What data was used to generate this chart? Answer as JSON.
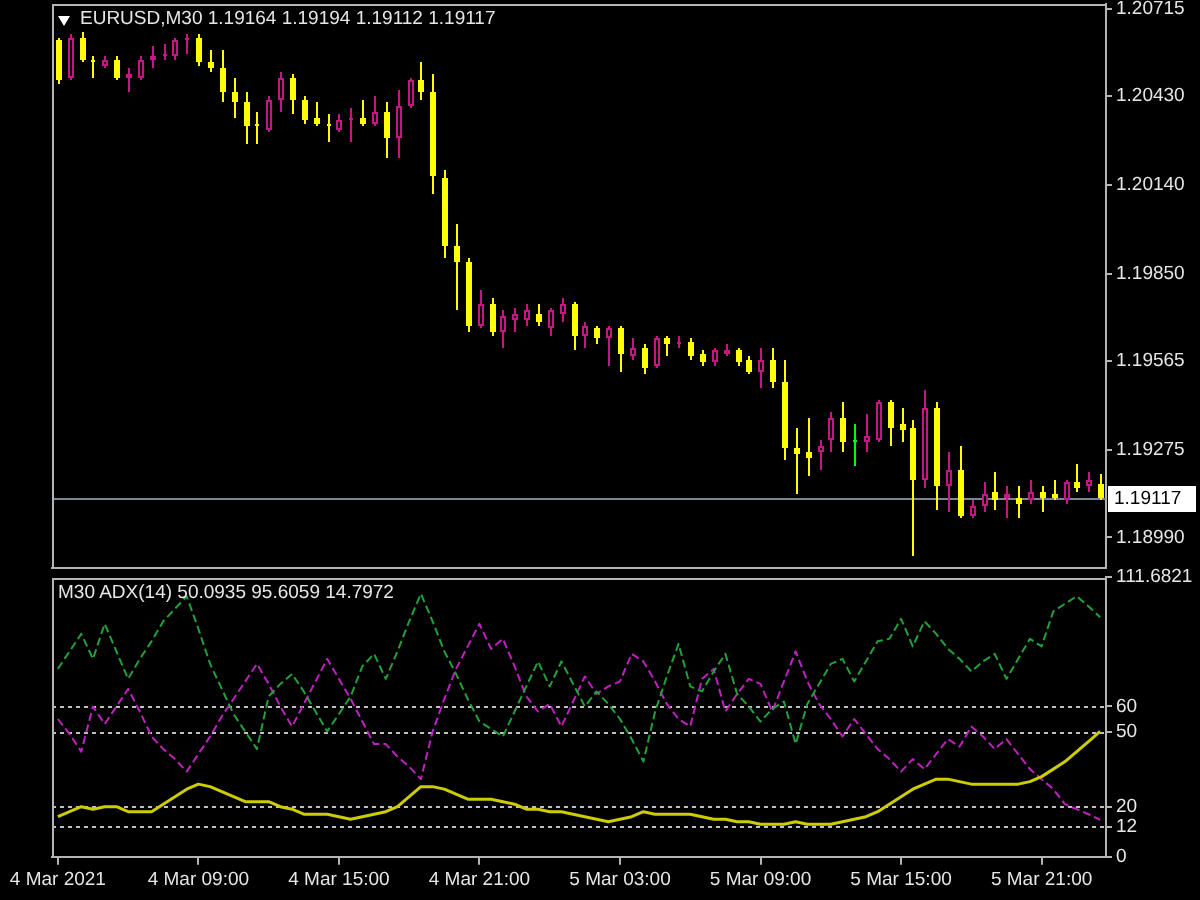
{
  "chart_data": [
    {
      "type": "candlestick",
      "title": "EURUSD,M30 1.19164 1.19194 1.19112 1.19117",
      "categories": [
        null,
        null,
        null,
        null,
        null,
        null,
        null,
        null,
        null,
        null,
        null,
        null,
        null,
        null,
        null,
        null,
        null,
        null,
        null,
        null,
        null,
        null,
        null,
        null,
        null,
        null,
        null,
        null,
        null,
        null,
        null,
        null,
        null,
        null,
        null,
        null,
        null,
        null,
        null,
        null,
        null,
        null,
        null,
        null,
        null,
        null,
        null,
        null,
        null,
        null,
        null,
        null,
        null,
        null,
        null,
        null,
        null,
        null,
        null,
        null,
        null,
        null,
        null,
        null,
        null,
        null,
        null,
        null,
        null,
        null,
        null,
        null,
        null,
        null,
        null,
        null,
        null,
        null,
        null,
        null,
        null,
        null,
        null,
        null,
        null,
        null,
        null,
        null,
        null,
        null
      ],
      "ohlc": [
        [
          1.2061,
          1.2062,
          1.2047,
          1.2048
        ],
        [
          1.2049,
          1.2063,
          1.2048,
          1.2062
        ],
        [
          1.2062,
          1.2064,
          1.2054,
          1.2055
        ],
        [
          1.2055,
          1.2056,
          1.2049,
          1.2054
        ],
        [
          1.2053,
          1.2056,
          1.2052,
          1.2055
        ],
        [
          1.2055,
          1.2056,
          1.2048,
          1.2049
        ],
        [
          1.2049,
          1.2052,
          1.2044,
          1.205
        ],
        [
          1.2049,
          1.2056,
          1.2048,
          1.2055
        ],
        [
          1.2055,
          1.2059,
          1.2052,
          1.2056
        ],
        [
          1.2056,
          1.206,
          1.2055,
          1.2057
        ],
        [
          1.2056,
          1.2062,
          1.2055,
          1.2061
        ],
        [
          1.2061,
          1.2063,
          1.2057,
          1.2062
        ],
        [
          1.2062,
          1.2063,
          1.2053,
          1.2054
        ],
        [
          1.2054,
          1.2058,
          1.2051,
          1.2052
        ],
        [
          1.2052,
          1.2058,
          1.2041,
          1.2044
        ],
        [
          1.2044,
          1.2049,
          1.2036,
          1.2041
        ],
        [
          1.2041,
          1.2044,
          1.2027,
          1.2033
        ],
        [
          1.2034,
          1.2038,
          1.2027,
          1.2033
        ],
        [
          1.2032,
          1.2043,
          1.2031,
          1.2042
        ],
        [
          1.2042,
          1.2051,
          1.2038,
          1.2049
        ],
        [
          1.2049,
          1.205,
          1.2037,
          1.2042
        ],
        [
          1.2042,
          1.2043,
          1.2034,
          1.2035
        ],
        [
          1.2036,
          1.2041,
          1.2033,
          1.2034
        ],
        [
          1.2034,
          1.2037,
          1.2028,
          1.2033
        ],
        [
          1.2032,
          1.2037,
          1.2031,
          1.2035
        ],
        [
          1.2035,
          1.2039,
          1.2028,
          1.2036
        ],
        [
          1.2036,
          1.2042,
          1.2033,
          1.2034
        ],
        [
          1.2034,
          1.2043,
          1.2033,
          1.2038
        ],
        [
          1.2038,
          1.2041,
          1.2023,
          1.2029
        ],
        [
          1.2029,
          1.2045,
          1.2023,
          1.204
        ],
        [
          1.204,
          1.2049,
          1.2039,
          1.2048
        ],
        [
          1.2048,
          1.2054,
          1.2042,
          1.2044
        ],
        [
          1.2044,
          1.205,
          1.2011,
          1.2017
        ],
        [
          1.2016,
          1.2019,
          1.199,
          1.1994
        ],
        [
          1.1994,
          1.2001,
          1.1973,
          1.1989
        ],
        [
          1.1989,
          1.199,
          1.1966,
          1.1968
        ],
        [
          1.1968,
          1.198,
          1.1967,
          1.1975
        ],
        [
          1.1975,
          1.1977,
          1.1965,
          1.1966
        ],
        [
          1.1966,
          1.1973,
          1.1961,
          1.1971
        ],
        [
          1.197,
          1.1974,
          1.1966,
          1.1972
        ],
        [
          1.197,
          1.1975,
          1.1968,
          1.1973
        ],
        [
          1.1972,
          1.1975,
          1.1968,
          1.1969
        ],
        [
          1.1967,
          1.1974,
          1.1965,
          1.1973
        ],
        [
          1.1972,
          1.1977,
          1.1969,
          1.1975
        ],
        [
          1.1975,
          1.1976,
          1.196,
          1.1965
        ],
        [
          1.1965,
          1.1969,
          1.1961,
          1.1968
        ],
        [
          1.1967,
          1.1968,
          1.1962,
          1.1964
        ],
        [
          1.1964,
          1.1968,
          1.1955,
          1.1967
        ],
        [
          1.1967,
          1.1968,
          1.1953,
          1.1959
        ],
        [
          1.1958,
          1.1964,
          1.1957,
          1.1961
        ],
        [
          1.1961,
          1.1962,
          1.1952,
          1.1954
        ],
        [
          1.1955,
          1.1965,
          1.1954,
          1.1964
        ],
        [
          1.1964,
          1.1965,
          1.1958,
          1.1962
        ],
        [
          1.1962,
          1.1965,
          1.1961,
          1.1963
        ],
        [
          1.1963,
          1.1964,
          1.1957,
          1.1958
        ],
        [
          1.1959,
          1.196,
          1.1955,
          1.1956
        ],
        [
          1.1956,
          1.1961,
          1.1955,
          1.196
        ],
        [
          1.1959,
          1.1962,
          1.1958,
          1.196
        ],
        [
          1.196,
          1.1961,
          1.1955,
          1.1956
        ],
        [
          1.1957,
          1.1958,
          1.1952,
          1.1953
        ],
        [
          1.1953,
          1.1961,
          1.1948,
          1.1957
        ],
        [
          1.1957,
          1.1961,
          1.1948,
          1.195
        ],
        [
          1.195,
          1.1957,
          1.1924,
          1.1928
        ],
        [
          1.1928,
          1.1935,
          1.1913,
          1.1926
        ],
        [
          1.1927,
          1.1938,
          1.1919,
          1.1925
        ],
        [
          1.1927,
          1.1931,
          1.1921,
          1.1929
        ],
        [
          1.1931,
          1.194,
          1.1927,
          1.1938
        ],
        [
          1.1938,
          1.1943,
          1.1927,
          1.193
        ],
        [
          1.1931,
          1.1936,
          1.1922,
          1.1931
        ],
        [
          1.193,
          1.1939,
          1.1927,
          1.1932
        ],
        [
          1.1931,
          1.1944,
          1.193,
          1.1943
        ],
        [
          1.1943,
          1.1944,
          1.1929,
          1.1935
        ],
        [
          1.1936,
          1.1941,
          1.193,
          1.1934
        ],
        [
          1.1935,
          1.1937,
          1.1893,
          1.1918
        ],
        [
          1.1918,
          1.1947,
          1.1915,
          1.1941
        ],
        [
          1.1941,
          1.1943,
          1.1908,
          1.1916
        ],
        [
          1.1916,
          1.1927,
          1.1907,
          1.1921
        ],
        [
          1.1921,
          1.1929,
          1.1905,
          1.1906
        ],
        [
          1.1906,
          1.1911,
          1.1905,
          1.1909
        ],
        [
          1.1909,
          1.1917,
          1.1907,
          1.1913
        ],
        [
          1.1914,
          1.192,
          1.1908,
          1.1911
        ],
        [
          1.1912,
          1.1916,
          1.1905,
          1.1913
        ],
        [
          1.1912,
          1.1916,
          1.1905,
          1.191
        ],
        [
          1.1911,
          1.1918,
          1.191,
          1.1914
        ],
        [
          1.1914,
          1.1916,
          1.1907,
          1.1912
        ],
        [
          1.1913,
          1.1918,
          1.1911,
          1.1912
        ],
        [
          1.1911,
          1.1918,
          1.191,
          1.1917
        ],
        [
          1.1917,
          1.1923,
          1.1914,
          1.1915
        ],
        [
          1.1916,
          1.192,
          1.1914,
          1.1918
        ],
        [
          1.19164,
          1.19194,
          1.19112,
          1.19117
        ]
      ],
      "colors": [
        "#ffff00",
        "#c71585",
        "#ffff00",
        "#ffff00",
        "#c71585",
        "#ffff00",
        "#c71585",
        "#c71585",
        "#c71585",
        "#c71585",
        "#c71585",
        "#c71585",
        "#ffff00",
        "#ffff00",
        "#ffff00",
        "#ffff00",
        "#ffff00",
        "#ffff00",
        "#c71585",
        "#c71585",
        "#ffff00",
        "#ffff00",
        "#ffff00",
        "#ffff00",
        "#c71585",
        "#c71585",
        "#ffff00",
        "#c71585",
        "#ffff00",
        "#c71585",
        "#c71585",
        "#ffff00",
        "#ffff00",
        "#ffff00",
        "#ffff00",
        "#ffff00",
        "#c71585",
        "#ffff00",
        "#c71585",
        "#c71585",
        "#c71585",
        "#ffff00",
        "#c71585",
        "#c71585",
        "#ffff00",
        "#c71585",
        "#ffff00",
        "#c71585",
        "#ffff00",
        "#c71585",
        "#ffff00",
        "#c71585",
        "#ffff00",
        "#c71585",
        "#ffff00",
        "#ffff00",
        "#c71585",
        "#c71585",
        "#ffff00",
        "#ffff00",
        "#c71585",
        "#ffff00",
        "#ffff00",
        "#ffff00",
        "#ffff00",
        "#c71585",
        "#c71585",
        "#ffff00",
        "#00ff00",
        "#c71585",
        "#c71585",
        "#ffff00",
        "#ffff00",
        "#ffff00",
        "#c71585",
        "#ffff00",
        "#c71585",
        "#ffff00",
        "#c71585",
        "#c71585",
        "#ffff00",
        "#c71585",
        "#ffff00",
        "#c71585",
        "#ffff00",
        "#ffff00",
        "#c71585",
        "#ffff00",
        "#c71585",
        "#ffff00"
      ],
      "ylim": [
        1.1889,
        1.2073
      ],
      "yticks": [
        1.20715,
        {
          "value": 1.2043,
          "label": "1.20430"
        },
        {
          "value": 1.2014,
          "label": "1.20140"
        },
        {
          "value": 1.1985,
          "label": "1.19850"
        },
        1.19565,
        1.19275,
        {
          "value": 1.1899,
          "label": "1.18990"
        }
      ],
      "ref_lines": [
        {
          "axis": "y",
          "value": 1.19117,
          "label": "1.19117",
          "color": "#778899"
        }
      ]
    },
    {
      "type": "line",
      "title": "M30 ADX(14) 50.0935 95.6059 14.7972",
      "categories": [
        "4 Mar 2021",
        null,
        null,
        null,
        null,
        null,
        null,
        null,
        null,
        null,
        null,
        null,
        "4 Mar 09:00",
        null,
        null,
        null,
        null,
        null,
        null,
        null,
        null,
        null,
        null,
        null,
        "4 Mar 15:00",
        null,
        null,
        null,
        null,
        null,
        null,
        null,
        null,
        null,
        null,
        null,
        "4 Mar 21:00",
        null,
        null,
        null,
        null,
        null,
        null,
        null,
        null,
        null,
        null,
        null,
        "5 Mar 03:00",
        null,
        null,
        null,
        null,
        null,
        null,
        null,
        null,
        null,
        null,
        null,
        "5 Mar 09:00",
        null,
        null,
        null,
        null,
        null,
        null,
        null,
        null,
        null,
        null,
        null,
        "5 Mar 15:00",
        null,
        null,
        null,
        null,
        null,
        null,
        null,
        null,
        null,
        null,
        null,
        "5 Mar 21:00",
        null,
        null,
        null,
        null,
        null
      ],
      "ylim": [
        0,
        111.6821
      ],
      "yticks": [
        0,
        12,
        20,
        50,
        60,
        111.6821
      ],
      "ref_lines": [
        {
          "axis": "y",
          "value": 60,
          "color": "#c0c0c0",
          "line_style": "dotted"
        },
        {
          "axis": "y",
          "value": 50,
          "color": "#c0c0c0",
          "line_style": "dotted"
        },
        {
          "axis": "y",
          "value": 20,
          "color": "#c0c0c0",
          "line_style": "dotted"
        },
        {
          "axis": "y",
          "value": 12,
          "color": "#c0c0c0",
          "line_style": "dotted"
        }
      ],
      "series": [
        {
          "color": "#cccc00",
          "line_style": "solid",
          "values": [
            16,
            18,
            20,
            19,
            20,
            20,
            18,
            18,
            18,
            21,
            24,
            27,
            29,
            28,
            26,
            24,
            22,
            22,
            22,
            20,
            19,
            17,
            17,
            17,
            16,
            15,
            16,
            17,
            18,
            20,
            24,
            28,
            28,
            27,
            25,
            23,
            23,
            23,
            22,
            21,
            19,
            19,
            18,
            18,
            17,
            16,
            15,
            14,
            15,
            16,
            18,
            17,
            17,
            17,
            17,
            16,
            15,
            15,
            14,
            14,
            13,
            13,
            13,
            14,
            13,
            13,
            13,
            14,
            15,
            16,
            18,
            21,
            24,
            27,
            29,
            31,
            31,
            30,
            29,
            29,
            29,
            29,
            29,
            30,
            32,
            35,
            38,
            42,
            46,
            50.0935
          ]
        },
        {
          "color": "#22a03a",
          "line_style": "dashed",
          "values": [
            75,
            82,
            89,
            79,
            93,
            82,
            71,
            79,
            86,
            94,
            99,
            104,
            91,
            77,
            67,
            57,
            50,
            43,
            64,
            69,
            73,
            66,
            58,
            50,
            57,
            64,
            76,
            81,
            71,
            82,
            94,
            105,
            94,
            82,
            73,
            63,
            54,
            51,
            48,
            58,
            68,
            78,
            68,
            78,
            69,
            60,
            66,
            61,
            55,
            47,
            38,
            58,
            72,
            85,
            68,
            66,
            74,
            81,
            65,
            60,
            54,
            59,
            62,
            45,
            61,
            69,
            77,
            79,
            70,
            78,
            86,
            87,
            95,
            84,
            94,
            89,
            83,
            79,
            74,
            78,
            81,
            71,
            79,
            87,
            84,
            98,
            101,
            104,
            100,
            95.6059
          ]
        },
        {
          "color": "#c020c0",
          "line_style": "dashed",
          "values": [
            55,
            49,
            42,
            60,
            53,
            60,
            67,
            58,
            48,
            43,
            39,
            34,
            41,
            48,
            56,
            63,
            70,
            77,
            69,
            60,
            52,
            61,
            70,
            79,
            71,
            63,
            54,
            45,
            45,
            40,
            36,
            31,
            50,
            63,
            75,
            84,
            93,
            83,
            87,
            76,
            64,
            58,
            61,
            52,
            62,
            72,
            65,
            68,
            70,
            81,
            78,
            70,
            61,
            55,
            52,
            71,
            75,
            58,
            65,
            71,
            69,
            58,
            70,
            82,
            70,
            61,
            55,
            48,
            55,
            49,
            43,
            39,
            34,
            39,
            35,
            41,
            47,
            44,
            52,
            48,
            43,
            47,
            41,
            35,
            31,
            27,
            21,
            19,
            17,
            14.7972
          ]
        }
      ]
    }
  ]
}
